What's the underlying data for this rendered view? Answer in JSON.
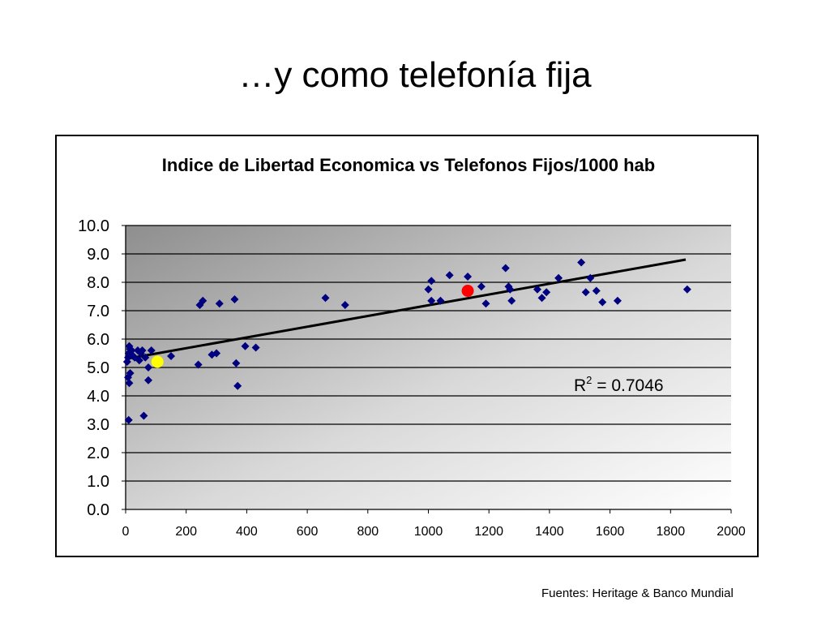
{
  "slide": {
    "title": "…y como telefonía fija",
    "footer": "Fuentes: Heritage & Banco Mundial"
  },
  "chart_data": {
    "type": "scatter",
    "title": "Indice de Libertad Economica vs Telefonos Fijos/1000 hab",
    "xlabel": "",
    "ylabel": "",
    "xlim": [
      0,
      2000
    ],
    "ylim": [
      0,
      10
    ],
    "x_ticks": [
      "0",
      "200",
      "400",
      "600",
      "800",
      "1000",
      "1200",
      "1400",
      "1600",
      "1800",
      "2000"
    ],
    "y_ticks": [
      "0.0",
      "1.0",
      "2.0",
      "3.0",
      "4.0",
      "5.0",
      "6.0",
      "7.0",
      "8.0",
      "9.0",
      "10.0"
    ],
    "grid": "horizontal",
    "annotation": {
      "text_r": "R",
      "text_sup": "2",
      "text_rest": " = 0.7046"
    },
    "trendline": {
      "type": "linear",
      "x": [
        0,
        1850
      ],
      "y": [
        5.3,
        8.8
      ]
    },
    "series": [
      {
        "marker": "diamond",
        "color": "#000080",
        "points": [
          [
            10,
            3.15
          ],
          [
            12,
            4.45
          ],
          [
            8,
            4.65
          ],
          [
            15,
            4.8
          ],
          [
            5,
            5.2
          ],
          [
            8,
            5.35
          ],
          [
            10,
            5.5
          ],
          [
            15,
            5.65
          ],
          [
            12,
            5.75
          ],
          [
            20,
            5.6
          ],
          [
            25,
            5.4
          ],
          [
            30,
            5.35
          ],
          [
            40,
            5.6
          ],
          [
            45,
            5.25
          ],
          [
            50,
            5.5
          ],
          [
            55,
            5.6
          ],
          [
            60,
            3.3
          ],
          [
            65,
            5.35
          ],
          [
            75,
            5.0
          ],
          [
            75,
            4.55
          ],
          [
            85,
            5.6
          ],
          [
            150,
            5.4
          ],
          [
            240,
            5.1
          ],
          [
            245,
            7.2
          ],
          [
            255,
            7.35
          ],
          [
            285,
            5.45
          ],
          [
            300,
            5.5
          ],
          [
            310,
            7.25
          ],
          [
            360,
            7.4
          ],
          [
            365,
            5.15
          ],
          [
            370,
            4.35
          ],
          [
            395,
            5.75
          ],
          [
            430,
            5.7
          ],
          [
            660,
            7.45
          ],
          [
            725,
            7.2
          ],
          [
            1000,
            7.75
          ],
          [
            1010,
            8.05
          ],
          [
            1010,
            7.35
          ],
          [
            1040,
            7.35
          ],
          [
            1070,
            8.25
          ],
          [
            1130,
            8.2
          ],
          [
            1175,
            7.85
          ],
          [
            1190,
            7.25
          ],
          [
            1255,
            8.5
          ],
          [
            1265,
            7.85
          ],
          [
            1270,
            7.75
          ],
          [
            1275,
            7.35
          ],
          [
            1360,
            7.75
          ],
          [
            1375,
            7.45
          ],
          [
            1390,
            7.65
          ],
          [
            1430,
            8.15
          ],
          [
            1505,
            8.7
          ],
          [
            1520,
            7.65
          ],
          [
            1535,
            8.15
          ],
          [
            1555,
            7.7
          ],
          [
            1575,
            7.3
          ],
          [
            1625,
            7.35
          ],
          [
            1855,
            7.75
          ]
        ]
      },
      {
        "marker": "circle",
        "color": "#ffff00",
        "points": [
          [
            105,
            5.2
          ]
        ]
      },
      {
        "marker": "circle",
        "color": "#ff0000",
        "points": [
          [
            1130,
            7.7
          ]
        ]
      }
    ]
  }
}
